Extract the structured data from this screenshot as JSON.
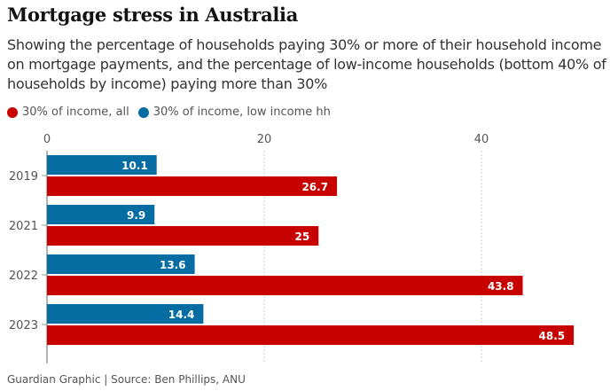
{
  "title": "Mortgage stress in Australia",
  "subtitle": "Showing the percentage of households paying 30% or more of their household income on mortgage payments, and the percentage of low-income households (bottom 40% of households by income) paying more than 30%",
  "source": "Guardian Graphic | Source: Ben Phillips, ANU",
  "chart_data": {
    "type": "bar",
    "orientation": "horizontal",
    "categories": [
      "2019",
      "2021",
      "2022",
      "2023"
    ],
    "series": [
      {
        "name": "30% of income, low income hh",
        "color": "#056da1",
        "values": [
          10.1,
          9.9,
          13.6,
          14.4
        ]
      },
      {
        "name": "30% of income, all",
        "color": "#c70000",
        "values": [
          26.7,
          25,
          43.8,
          48.5
        ]
      }
    ],
    "legend": [
      {
        "label": "30% of income, all",
        "color": "#c70000"
      },
      {
        "label": "30% of income, low income hh",
        "color": "#056da1"
      }
    ],
    "xticks": [
      "0",
      "20",
      "40"
    ],
    "xlim": [
      0,
      50
    ],
    "grid": true,
    "legend_position": "top-left"
  }
}
